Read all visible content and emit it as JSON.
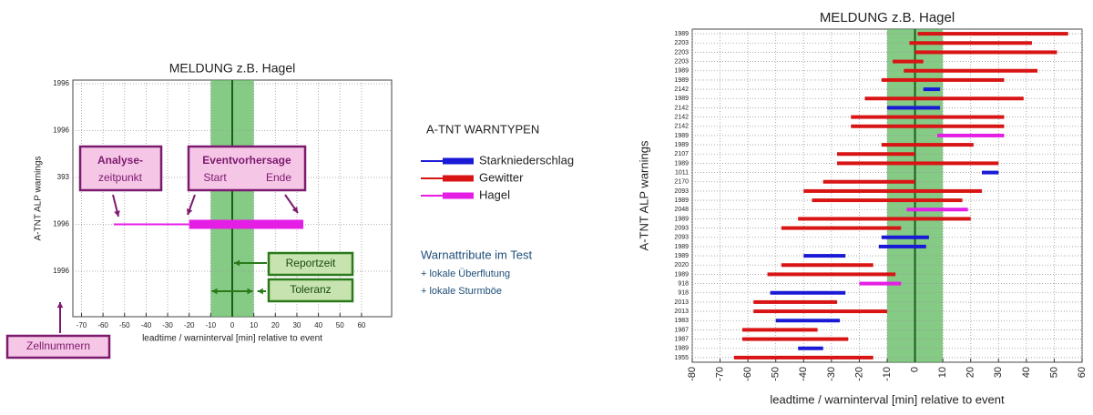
{
  "chart_data": [
    {
      "type": "range-bar",
      "title": "MELDUNG z.B. Hagel",
      "xlabel": "leadtime / warninterval [min] relative to event",
      "ylabel": "A-TNT ALP warnings",
      "categories": [
        "1996",
        "1996",
        "393",
        "1996",
        "1996"
      ],
      "xlim": [
        -74,
        74
      ],
      "xticks": [
        -70,
        -60,
        -50,
        -40,
        -30,
        -20,
        -10,
        0,
        10,
        20,
        30,
        40,
        50,
        60
      ],
      "grid": true,
      "band": [
        -10,
        10
      ],
      "event_line": 0,
      "series": [
        {
          "name": "Hagel",
          "color": "#e41ee4",
          "values": [
            null,
            null,
            null,
            [
              -20,
              33
            ],
            null
          ],
          "issue": [
            null,
            null,
            null,
            -55,
            null
          ]
        }
      ],
      "annotations": [
        "Analyse-",
        "zeitpunkt",
        "Eventvorhersage",
        "Start",
        "Ende",
        "Reportzeit",
        "Toleranz",
        "Zellnummern"
      ]
    },
    {
      "type": "range-bar",
      "title": "MELDUNG z.B. Hagel",
      "xlabel": "leadtime / warninterval [min] relative to event",
      "ylabel": "A-TNT ALP warnings",
      "categories": [
        "1989",
        "2203",
        "2203",
        "2203",
        "1989",
        "1989",
        "2142",
        "1989",
        "2142",
        "2142",
        "2142",
        "1989",
        "1989",
        "2107",
        "1989",
        "1011",
        "2170",
        "2093",
        "1989",
        "2048",
        "1989",
        "2093",
        "2093",
        "1989",
        "1989",
        "2020",
        "1989",
        "918",
        "918",
        "2013",
        "2013",
        "1983",
        "1987",
        "1987",
        "1989",
        "1955"
      ],
      "xlim": [
        -80,
        60
      ],
      "xticks": [
        -80,
        -70,
        -60,
        -50,
        -40,
        -30,
        -20,
        -10,
        0,
        10,
        20,
        30,
        40,
        50,
        60
      ],
      "grid": true,
      "band": [
        -10,
        10
      ],
      "event_line": 0,
      "series": [
        {
          "name": "Starkniederschlag",
          "color": "#1a1ad6",
          "values": [
            null,
            null,
            null,
            null,
            null,
            null,
            [
              3,
              9
            ],
            null,
            [
              -10,
              9
            ],
            null,
            null,
            null,
            null,
            null,
            null,
            [
              24,
              30
            ],
            null,
            null,
            null,
            null,
            null,
            null,
            [
              -12,
              5
            ],
            [
              -13,
              4
            ],
            [
              -40,
              -25
            ],
            null,
            null,
            null,
            [
              -52,
              -25
            ],
            null,
            null,
            [
              -50,
              -27
            ],
            null,
            null,
            [
              -42,
              -33
            ],
            null
          ]
        },
        {
          "name": "Gewitter",
          "color": "#d81414",
          "values": [
            [
              1,
              55
            ],
            [
              -2,
              42
            ],
            [
              0,
              51
            ],
            [
              -8,
              3
            ],
            [
              -4,
              44
            ],
            [
              -12,
              32
            ],
            null,
            [
              -18,
              39
            ],
            null,
            [
              -23,
              32
            ],
            [
              -23,
              32
            ],
            null,
            [
              -12,
              21
            ],
            [
              -28,
              0
            ],
            [
              -28,
              30
            ],
            null,
            [
              -33,
              0
            ],
            [
              -40,
              24
            ],
            [
              -37,
              17
            ],
            null,
            [
              -42,
              20
            ],
            [
              -48,
              -5
            ],
            null,
            null,
            null,
            [
              -48,
              -15
            ],
            [
              -53,
              -7
            ],
            null,
            null,
            [
              -58,
              -28
            ],
            [
              -58,
              -10
            ],
            null,
            [
              -62,
              -35
            ],
            [
              -62,
              -24
            ],
            null,
            [
              -65,
              -15
            ]
          ]
        },
        {
          "name": "Hagel",
          "color": "#e41ee4",
          "values": [
            null,
            null,
            null,
            null,
            null,
            null,
            null,
            null,
            null,
            null,
            null,
            [
              8,
              32
            ],
            null,
            null,
            null,
            null,
            null,
            null,
            null,
            [
              -3,
              19
            ],
            null,
            null,
            null,
            null,
            null,
            null,
            null,
            [
              -20,
              -5
            ],
            null,
            null,
            null,
            null,
            null,
            null,
            null,
            null
          ]
        }
      ]
    }
  ],
  "legend": {
    "title": "A-TNT WARNTYPEN"
  },
  "notes": {
    "title": "Warnattribute im Test",
    "items": [
      "+ lokale Überflutung",
      "+ lokale Sturmböe"
    ]
  }
}
